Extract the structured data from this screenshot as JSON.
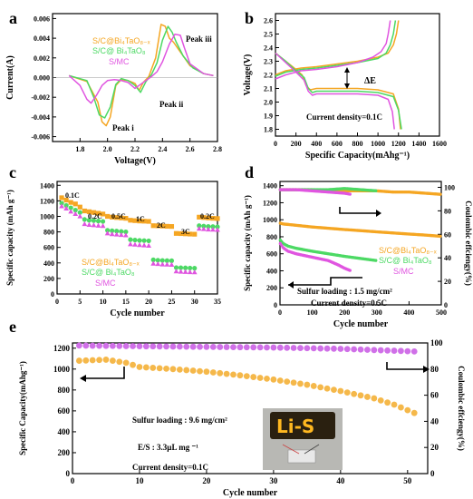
{
  "chart_data": [
    {
      "panel": "a",
      "type": "line",
      "xlabel": "Voltage(V)",
      "ylabel": "Current(A)",
      "xlim": [
        1.6,
        2.8
      ],
      "ylim": [
        -0.0065,
        0.0065
      ],
      "xticks": [
        "1.8",
        "2.0",
        "2.2",
        "2.4",
        "2.6",
        "2.8"
      ],
      "yticks": [
        "0.006",
        "0.004",
        "0.002",
        "0.000",
        "-0.002",
        "-0.004",
        "-0.006"
      ],
      "annotations": [
        "Peak iii",
        "Peak ii",
        "Peak i"
      ],
      "legend": [
        "S/C@Bi4TaO8-x",
        "S/C@ Bi4TaO8",
        "S/MC"
      ],
      "series": [
        {
          "name": "S/C@Bi4TaO8-x",
          "color": "#f5a623",
          "x": [
            1.72,
            1.85,
            1.93,
            1.96,
            1.99,
            2.02,
            2.06,
            2.1,
            2.15,
            2.2,
            2.23,
            2.26,
            2.3,
            2.35,
            2.39,
            2.42,
            2.45,
            2.48,
            2.52,
            2.6,
            2.7,
            2.77
          ],
          "y": [
            0.0002,
            -0.0004,
            -0.0025,
            -0.0045,
            -0.0049,
            -0.004,
            -0.0008,
            -0.0002,
            -0.0003,
            -0.0006,
            -0.0013,
            -0.0005,
            0.0001,
            0.002,
            0.0054,
            0.0052,
            0.004,
            0.0036,
            0.0028,
            0.0012,
            0.0004,
            0.0002
          ]
        },
        {
          "name": "S/C@ Bi4TaO8",
          "color": "#4cd964",
          "x": [
            1.72,
            1.85,
            1.9,
            1.94,
            1.98,
            2.02,
            2.06,
            2.1,
            2.15,
            2.2,
            2.24,
            2.28,
            2.32,
            2.36,
            2.4,
            2.44,
            2.47,
            2.5,
            2.55,
            2.62,
            2.7,
            2.77
          ],
          "y": [
            0.0002,
            -0.0003,
            -0.002,
            -0.0038,
            -0.0041,
            -0.003,
            -0.0007,
            -0.0001,
            -0.0003,
            -0.0008,
            -0.0015,
            -0.0004,
            0.0003,
            0.0015,
            0.0038,
            0.0052,
            0.0046,
            0.0036,
            0.0022,
            0.001,
            0.0004,
            0.0002
          ]
        },
        {
          "name": "S/MC",
          "color": "#e055e0",
          "x": [
            1.72,
            1.8,
            1.85,
            1.88,
            1.92,
            1.96,
            2.0,
            2.05,
            2.1,
            2.15,
            2.2,
            2.27,
            2.32,
            2.36,
            2.4,
            2.45,
            2.49,
            2.53,
            2.56,
            2.6,
            2.7,
            2.77
          ],
          "y": [
            0.0002,
            -0.0008,
            -0.0022,
            -0.0026,
            -0.0018,
            -0.0008,
            -0.0003,
            -0.0002,
            -0.0003,
            -0.0005,
            -0.0011,
            -0.0004,
            0.0001,
            0.0006,
            0.0016,
            0.0034,
            0.0044,
            0.0043,
            0.003,
            0.0014,
            0.0004,
            0.0002
          ]
        }
      ]
    },
    {
      "panel": "b",
      "type": "line",
      "xlabel": "Specific Capacity(mAhg⁻¹)",
      "ylabel": "Voltage(V)",
      "xlim": [
        0,
        1600
      ],
      "ylim": [
        1.75,
        2.65
      ],
      "xticks": [
        "0",
        "200",
        "400",
        "600",
        "800",
        "1000",
        "1200",
        "1400",
        "1600"
      ],
      "yticks": [
        "2.6",
        "2.5",
        "2.4",
        "2.3",
        "2.2",
        "2.1",
        "2.0",
        "1.9",
        "1.8"
      ],
      "annotations": [
        "ΔE",
        "Current density=0.1C"
      ],
      "series": [
        {
          "name": "S/C@Bi4TaO8-x discharge",
          "color": "#f5a623",
          "x": [
            0,
            100,
            200,
            260,
            300,
            340,
            400,
            600,
            800,
            1000,
            1150,
            1200,
            1220
          ],
          "y": [
            2.36,
            2.3,
            2.24,
            2.2,
            2.12,
            2.09,
            2.1,
            2.1,
            2.1,
            2.09,
            2.06,
            1.95,
            1.8
          ]
        },
        {
          "name": "S/C@Bi4TaO8-x charge",
          "color": "#f5a623",
          "x": [
            0,
            100,
            250,
            400,
            600,
            800,
            1000,
            1100,
            1150,
            1180,
            1200
          ],
          "y": [
            2.2,
            2.23,
            2.25,
            2.26,
            2.28,
            2.3,
            2.33,
            2.36,
            2.42,
            2.5,
            2.6
          ]
        },
        {
          "name": "S/C@ Bi4TaO8 discharge",
          "color": "#4cd964",
          "x": [
            0,
            100,
            200,
            280,
            320,
            360,
            400,
            600,
            800,
            1000,
            1150,
            1200,
            1230
          ],
          "y": [
            2.36,
            2.3,
            2.23,
            2.18,
            2.1,
            2.07,
            2.08,
            2.08,
            2.08,
            2.07,
            2.04,
            1.94,
            1.8
          ]
        },
        {
          "name": "S/C@ Bi4TaO8 charge",
          "color": "#4cd964",
          "x": [
            0,
            100,
            250,
            400,
            600,
            800,
            1000,
            1080,
            1120,
            1150,
            1170
          ],
          "y": [
            2.19,
            2.22,
            2.24,
            2.25,
            2.27,
            2.29,
            2.32,
            2.36,
            2.42,
            2.5,
            2.6
          ]
        },
        {
          "name": "S/MC discharge",
          "color": "#e055e0",
          "x": [
            0,
            100,
            200,
            280,
            320,
            360,
            400,
            600,
            800,
            1000,
            1100,
            1140,
            1160
          ],
          "y": [
            2.36,
            2.29,
            2.22,
            2.16,
            2.08,
            2.05,
            2.06,
            2.06,
            2.06,
            2.05,
            2.02,
            1.93,
            1.8
          ]
        },
        {
          "name": "S/MC charge",
          "color": "#e055e0",
          "x": [
            0,
            100,
            250,
            400,
            600,
            800,
            950,
            1030,
            1080,
            1100,
            1120
          ],
          "y": [
            2.17,
            2.2,
            2.23,
            2.24,
            2.26,
            2.29,
            2.33,
            2.37,
            2.43,
            2.5,
            2.6
          ]
        }
      ]
    },
    {
      "panel": "c",
      "type": "scatter",
      "xlabel": "Cycle number",
      "ylabel": "Specific capacity (mAh g⁻¹)",
      "xlim": [
        0,
        35
      ],
      "ylim": [
        0,
        1450
      ],
      "xticks": [
        "0",
        "5",
        "10",
        "15",
        "20",
        "25",
        "30",
        "35"
      ],
      "yticks": [
        "0",
        "200",
        "400",
        "600",
        "800",
        "1000",
        "1200",
        "1400"
      ],
      "annotations": [
        "0.1C",
        "0.2C",
        "0.5C",
        "1C",
        "2C",
        "3C",
        "0.2C"
      ],
      "legend": [
        "S/C@Bi4TaO8-x",
        "S/C@ Bi4TaO8",
        "S/MC"
      ],
      "series": [
        {
          "name": "S/C@Bi4TaO8-x",
          "color": "#f5a623",
          "marker": "square",
          "values": [
            1240,
            1210,
            1180,
            1160,
            1120,
            1070,
            1060,
            1050,
            1040,
            1030,
            1000,
            990,
            985,
            980,
            975,
            950,
            945,
            940,
            938,
            935,
            880,
            878,
            875,
            872,
            870,
            780,
            778,
            775,
            772,
            770,
            990,
            985,
            980,
            975,
            972
          ]
        },
        {
          "name": "S/C@ Bi4TaO8",
          "color": "#4cd964",
          "marker": "circle",
          "values": [
            1170,
            1140,
            1110,
            1080,
            1050,
            960,
            950,
            945,
            940,
            935,
            820,
            815,
            810,
            805,
            800,
            700,
            695,
            690,
            688,
            685,
            440,
            435,
            432,
            430,
            428,
            340,
            338,
            336,
            334,
            332,
            880,
            875,
            870,
            868,
            865
          ]
        },
        {
          "name": "S/MC",
          "color": "#e055e0",
          "marker": "triangle",
          "values": [
            1130,
            1100,
            1060,
            1030,
            1000,
            900,
            890,
            885,
            880,
            875,
            780,
            770,
            765,
            760,
            755,
            640,
            635,
            630,
            625,
            620,
            390,
            385,
            380,
            378,
            375,
            290,
            286,
            283,
            280,
            278,
            840,
            835,
            830,
            828,
            825
          ]
        }
      ]
    },
    {
      "panel": "d",
      "type": "scatter",
      "xlabel": "Cycle number",
      "ylabel": "Specific capacity (mAh g⁻¹)",
      "y2label": "Coulombic effciengy(%)",
      "xlim": [
        0,
        500
      ],
      "ylim": [
        0,
        1450
      ],
      "y2lim": [
        0,
        105
      ],
      "xticks": [
        "0",
        "100",
        "200",
        "300",
        "400",
        "500"
      ],
      "yticks": [
        "0",
        "200",
        "400",
        "600",
        "800",
        "1000",
        "1200",
        "1400"
      ],
      "y2ticks": [
        "0",
        "20",
        "40",
        "60",
        "80",
        "100"
      ],
      "annotations": [
        "Sulfur loading : 1.5 mg/cm²",
        "Current density=0.5C"
      ],
      "legend": [
        "S/C@Bi4TaO8-x",
        "S/C@ Bi4TaO8",
        "S/MC"
      ],
      "series": [
        {
          "name": "S/C@Bi4TaO8-x",
          "color": "#f5a623",
          "x": [
            1,
            10,
            25,
            50,
            100,
            150,
            200,
            250,
            300,
            350,
            400,
            450,
            500
          ],
          "y": [
            960,
            950,
            945,
            935,
            915,
            900,
            885,
            872,
            858,
            845,
            832,
            820,
            805
          ],
          "ce_x": [
            1,
            50,
            100,
            150,
            200,
            250,
            300,
            350,
            400,
            450,
            500
          ],
          "ce": [
            98,
            98,
            98,
            97,
            97,
            97,
            97,
            96,
            96,
            95,
            94
          ]
        },
        {
          "name": "S/C@ Bi4TaO8",
          "color": "#4cd964",
          "x": [
            1,
            10,
            25,
            50,
            100,
            150,
            200,
            250,
            300
          ],
          "y": [
            760,
            720,
            690,
            665,
            630,
            600,
            570,
            545,
            520
          ],
          "ce_x": [
            1,
            50,
            100,
            150,
            200,
            250,
            300
          ],
          "ce": [
            98,
            98,
            98,
            98,
            99,
            98,
            97
          ]
        },
        {
          "name": "S/MC",
          "color": "#e055e0",
          "x": [
            1,
            10,
            25,
            50,
            100,
            150,
            180,
            200,
            220
          ],
          "y": [
            720,
            670,
            630,
            600,
            560,
            520,
            470,
            430,
            400
          ],
          "ce_x": [
            1,
            50,
            100,
            150,
            200,
            220
          ],
          "ce": [
            98,
            98,
            97,
            96,
            95,
            94
          ]
        }
      ]
    },
    {
      "panel": "e",
      "type": "scatter",
      "xlabel": "Cycle number",
      "ylabel": "Specific Capacity(mAhg⁻¹)",
      "y2label": "Coulombic effciengy(%)",
      "xlim": [
        0,
        53
      ],
      "ylim": [
        0,
        1250
      ],
      "y2lim": [
        0,
        100
      ],
      "xticks": [
        "0",
        "10",
        "20",
        "30",
        "40",
        "50"
      ],
      "yticks": [
        "0",
        "200",
        "400",
        "600",
        "800",
        "1000",
        "1200"
      ],
      "y2ticks": [
        "0",
        "20",
        "40",
        "60",
        "80",
        "100"
      ],
      "annotations": [
        "Sulfur loading : 9.6 mg/cm²",
        "E/S : 3.3µL mg ⁻¹",
        "Current density=0.1C"
      ],
      "photo_label": "Li-S",
      "series": [
        {
          "name": "Specific Capacity",
          "color": "#f5b84a",
          "x": [
            1,
            5,
            8,
            10,
            15,
            20,
            25,
            30,
            35,
            40,
            45,
            48,
            51
          ],
          "y": [
            1080,
            1090,
            1060,
            1020,
            1000,
            975,
            940,
            900,
            850,
            790,
            720,
            660,
            580
          ]
        },
        {
          "name": "Coulombic effciengy",
          "color": "#d070e8",
          "x": [
            1,
            10,
            20,
            30,
            40,
            51
          ],
          "y": [
            98,
            97.5,
            97,
            96.5,
            95.5,
            93.5
          ]
        }
      ]
    }
  ],
  "labels": {
    "panel_a": "a",
    "panel_b": "b",
    "panel_c": "c",
    "panel_d": "d",
    "panel_e": "e",
    "legend_bi4tao8x": "S/C@Bi₄TaO₈₋ₓ",
    "legend_bi4tao8": "S/C@ Bi₄TaO₈",
    "legend_smc": "S/MC",
    "a_peak_i": "Peak i",
    "a_peak_ii": "Peak ii",
    "a_peak_iii": "Peak iii",
    "b_delta": "ΔE",
    "b_current": "Current density=0.1C",
    "c_rates": [
      "0.1C",
      "0.2C",
      "0.5C",
      "1C",
      "2C",
      "3C",
      "0.2C"
    ],
    "d_sulfur": "Sulfur loading : 1.5 mg/cm²",
    "d_current": "Current density=0.5C",
    "e_sulfur": "Sulfur loading : 9.6 mg/cm²",
    "e_es": "E/S : 3.3µL mg ⁻¹",
    "e_current": "Current density=0.1C",
    "e_photo": "Li-S"
  }
}
